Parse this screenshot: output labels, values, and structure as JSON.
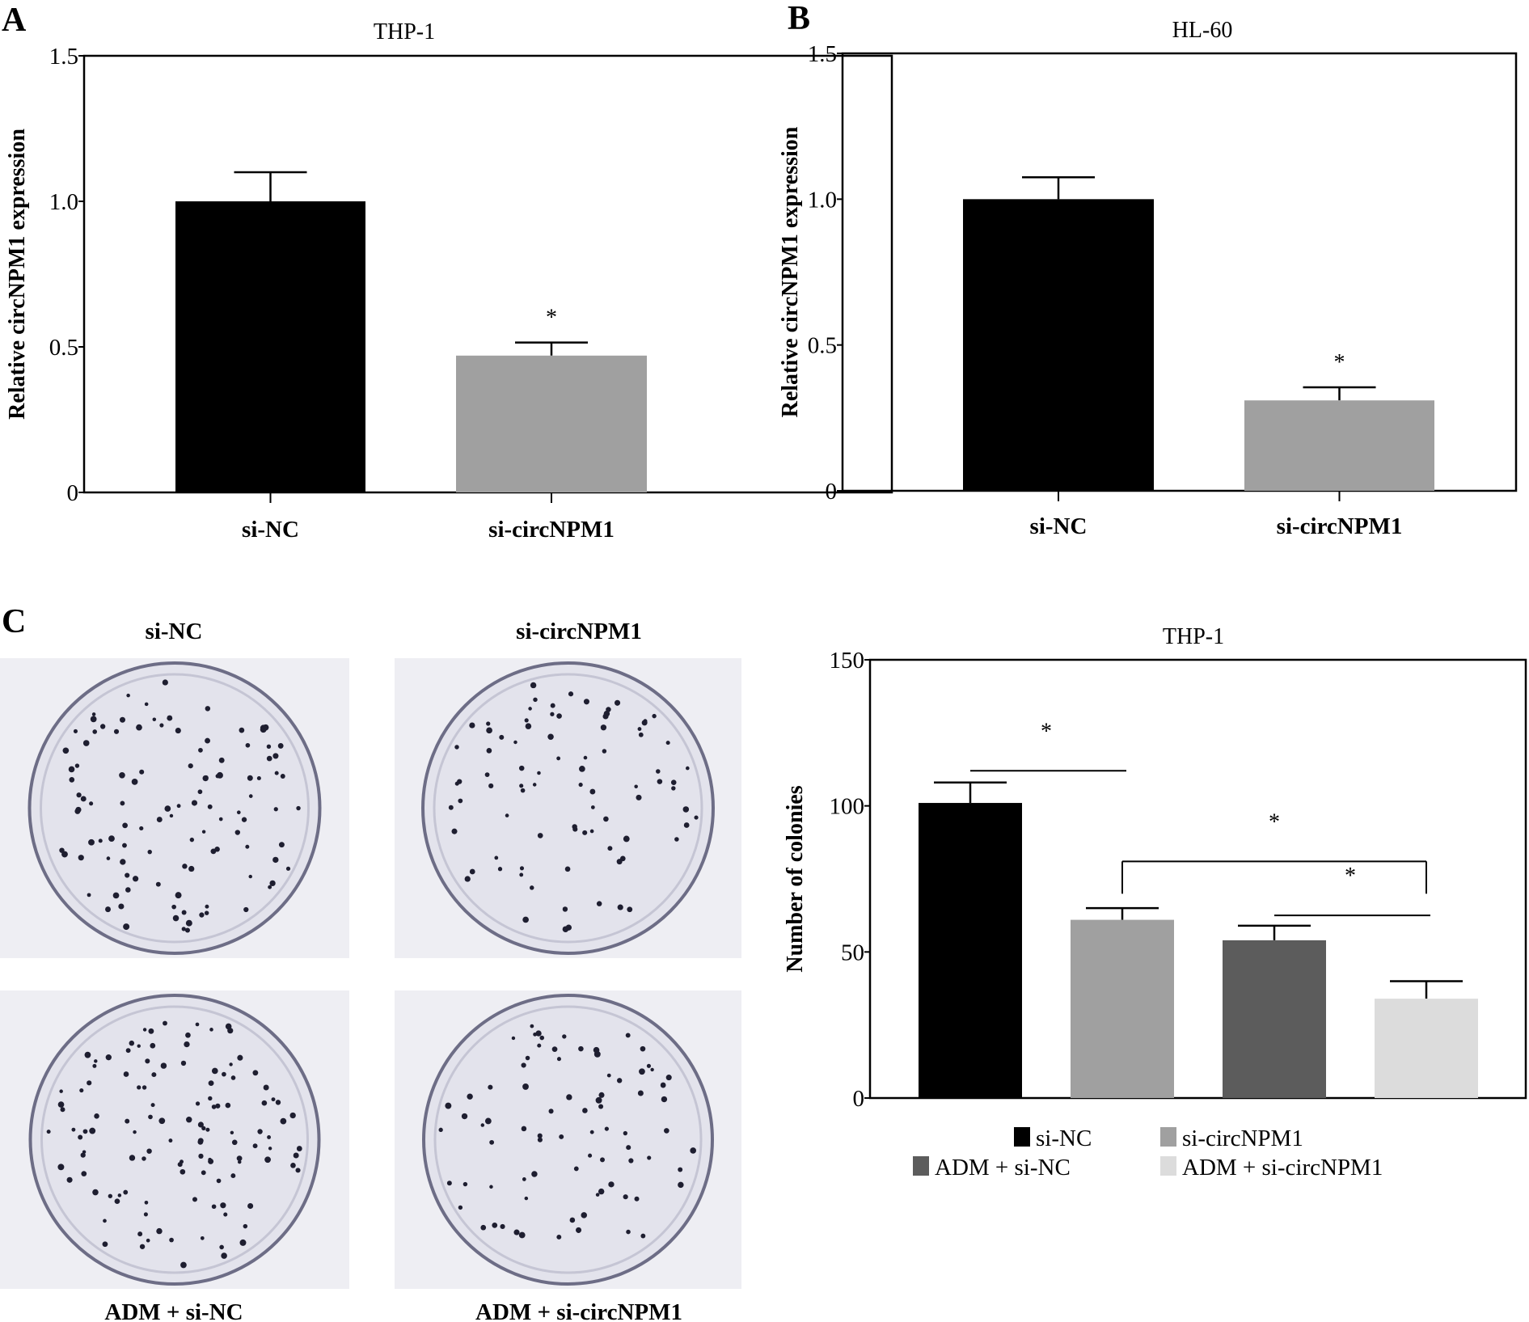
{
  "panels": {
    "a": "A",
    "b": "B",
    "c": "C"
  },
  "photos": {
    "labels": [
      "si-NC",
      "si-circNPM1",
      "ADM + si-NC",
      "ADM + si-circNPM1"
    ]
  },
  "chart_data": [
    {
      "type": "bar",
      "title": "THP-1",
      "ylabel": "Relative circNPM1 expression",
      "xlabel": "",
      "ylim": [
        0,
        1.5
      ],
      "yticks": [
        "0",
        "0.5",
        "1.0",
        "1.5"
      ],
      "ytick_values": [
        0,
        0.5,
        1.0,
        1.5
      ],
      "categories": [
        "si-NC",
        "si-circNPM1"
      ],
      "values": [
        1.0,
        0.47
      ],
      "errors": [
        0.1,
        0.045
      ],
      "colors": [
        "#000000",
        "#a0a0a0"
      ],
      "annotations": [
        {
          "text": "*",
          "over": 1
        }
      ]
    },
    {
      "type": "bar",
      "title": "HL-60",
      "ylabel": "Relative circNPM1 expression",
      "xlabel": "",
      "ylim": [
        0,
        1.5
      ],
      "yticks": [
        "0",
        "0.5",
        "1.0",
        "1.5"
      ],
      "ytick_values": [
        0,
        0.5,
        1.0,
        1.5
      ],
      "categories": [
        "si-NC",
        "si-circNPM1"
      ],
      "values": [
        1.0,
        0.31
      ],
      "errors": [
        0.075,
        0.045
      ],
      "colors": [
        "#000000",
        "#a0a0a0"
      ],
      "annotations": [
        {
          "text": "*",
          "over": 1
        }
      ]
    },
    {
      "type": "bar",
      "title": "THP-1",
      "ylabel": "Number of colonies",
      "xlabel": "",
      "ylim": [
        0,
        150
      ],
      "yticks": [
        "0",
        "50",
        "100",
        "150"
      ],
      "ytick_values": [
        0,
        50,
        100,
        150
      ],
      "categories": [
        "si-NC",
        "si-circNPM1",
        "ADM + si-NC",
        "ADM + si-circNPM1"
      ],
      "values": [
        101,
        61,
        54,
        34
      ],
      "errors": [
        7,
        4,
        5,
        6
      ],
      "colors": [
        "#000000",
        "#a0a0a0",
        "#5c5c5c",
        "#dcdcdc"
      ],
      "legend": {
        "position": "bottom",
        "entries": [
          "si-NC",
          "si-circNPM1",
          "ADM + si-NC",
          "ADM + si-circNPM1"
        ]
      },
      "significance": [
        {
          "from": 0,
          "to": 1,
          "y": 112,
          "text": "*",
          "bracket": false
        },
        {
          "from": 1,
          "to": 3,
          "y": 81,
          "text": "*",
          "bracket": true
        },
        {
          "from": 2,
          "to": 3,
          "y": 62.5,
          "text": "*",
          "bracket": false
        }
      ]
    }
  ]
}
